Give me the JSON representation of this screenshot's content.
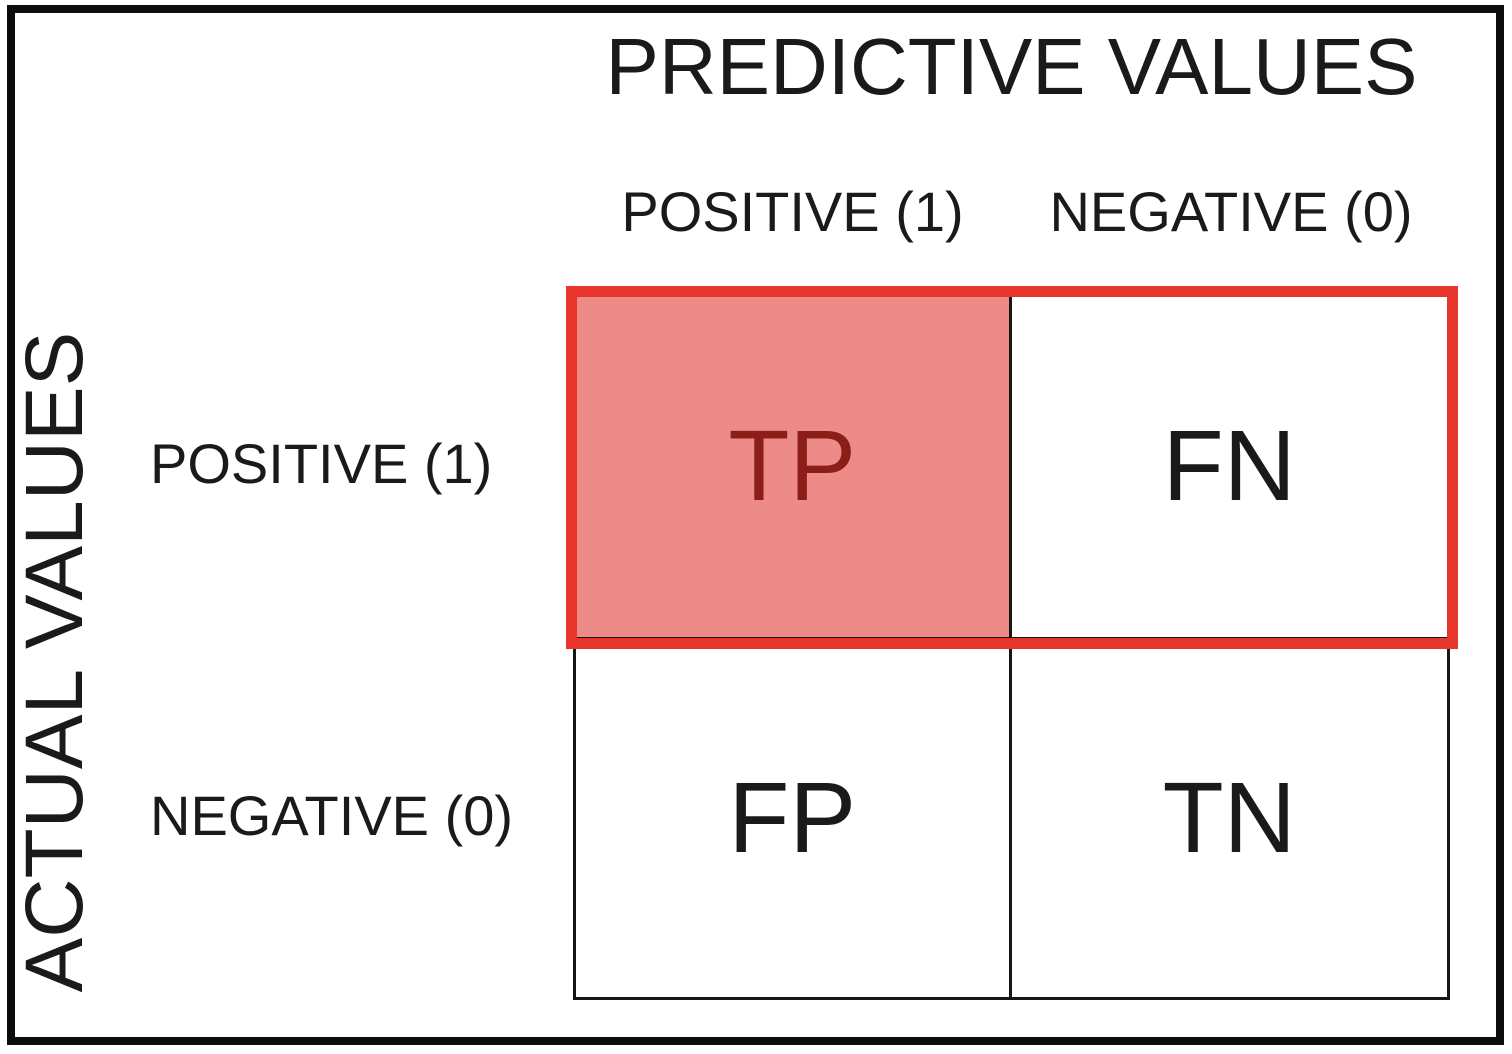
{
  "diagram": {
    "title": "PREDICTIVE VALUES",
    "y_axis_label": "ACTUAL VALUES",
    "column_headers": [
      {
        "label": "POSITIVE (1)"
      },
      {
        "label": "NEGATIVE (0)"
      }
    ],
    "row_headers": [
      {
        "label": "POSITIVE (1)"
      },
      {
        "label": "NEGATIVE (0)"
      }
    ],
    "cells": {
      "tp": "TP",
      "fn": "FN",
      "fp": "FP",
      "tn": "TN"
    },
    "colors": {
      "highlight_fill": "#ec8b88",
      "highlight_text": "#8b1e19",
      "highlight_border": "#e8352b",
      "grid_line": "#161616",
      "text": "#1a1a1a",
      "frame": "#0c0c0c"
    }
  },
  "chart_data": {
    "type": "table",
    "title": "PREDICTIVE VALUES",
    "row_axis_label": "ACTUAL VALUES",
    "columns": [
      "POSITIVE (1)",
      "NEGATIVE (0)"
    ],
    "rows": [
      "POSITIVE (1)",
      "NEGATIVE (0)"
    ],
    "values": [
      [
        "TP",
        "FN"
      ],
      [
        "FP",
        "TN"
      ]
    ],
    "highlighted_cell": "TP",
    "highlighted_row": "POSITIVE (1)",
    "legend_position": "none",
    "grid": true
  }
}
